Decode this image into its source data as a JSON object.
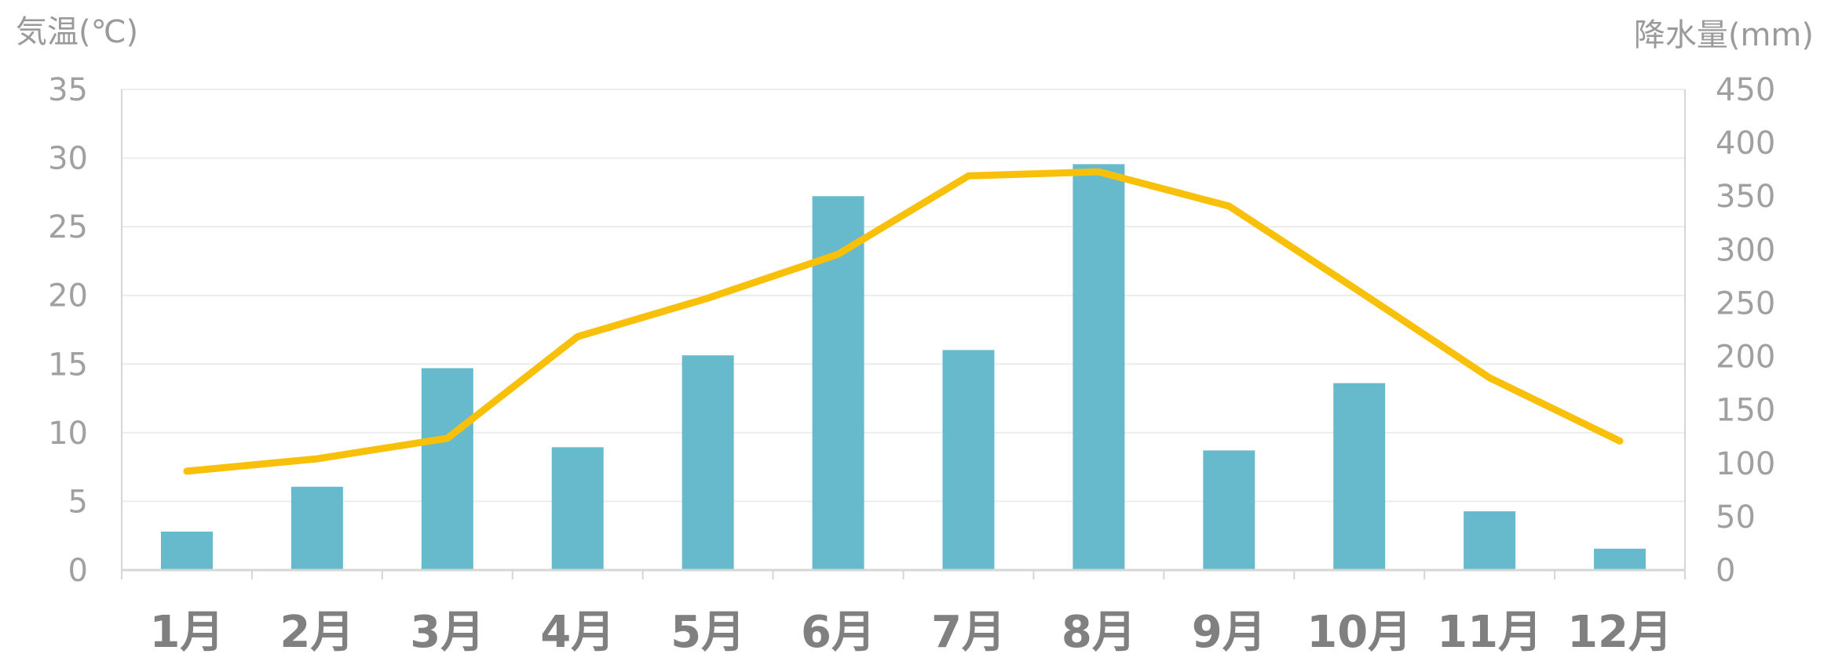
{
  "chart_data": {
    "type": "bar+line",
    "left_axis_title": "気温(℃)",
    "right_axis_title": "降水量(mm)",
    "categories": [
      "1月",
      "2月",
      "3月",
      "4月",
      "5月",
      "6月",
      "7月",
      "8月",
      "9月",
      "10月",
      "11月",
      "12月"
    ],
    "left_axis": {
      "min": 0,
      "max": 35,
      "step": 5,
      "ticks": [
        "0",
        "5",
        "10",
        "15",
        "20",
        "25",
        "30",
        "35"
      ]
    },
    "right_axis": {
      "min": 0,
      "max": 450,
      "step": 50,
      "ticks": [
        "0",
        "50",
        "100",
        "150",
        "200",
        "250",
        "300",
        "350",
        "400",
        "450"
      ]
    },
    "grid": true,
    "legend": "none",
    "series": [
      {
        "type": "bar",
        "axis": "right",
        "color": "#67b9cc",
        "values": [
          36,
          78,
          189,
          115,
          201,
          350,
          206,
          380,
          112,
          175,
          55,
          20
        ]
      },
      {
        "type": "line",
        "axis": "left",
        "color": "#f9c009",
        "values": [
          7.2,
          8.1,
          9.6,
          17.0,
          19.8,
          23.0,
          28.7,
          29.0,
          26.5,
          20.3,
          14.0,
          9.4
        ]
      }
    ]
  }
}
